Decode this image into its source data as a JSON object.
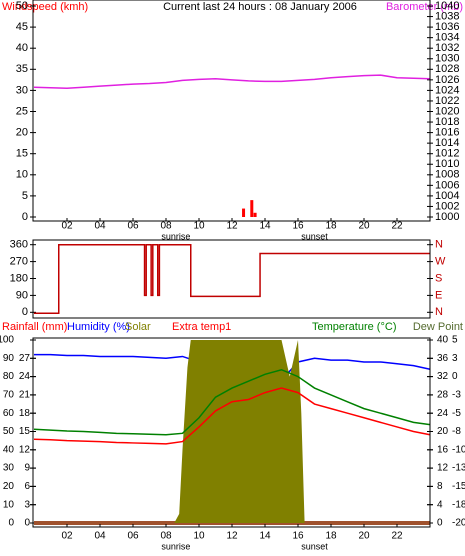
{
  "chart_data": [
    {
      "type": "bar-line",
      "title": "Current last 24 hours : 08 January 2006",
      "xlim": [
        0,
        24
      ],
      "xticks": [
        {
          "value": 2,
          "label": "02"
        },
        {
          "value": 4,
          "label": "04"
        },
        {
          "value": 6,
          "label": "06"
        },
        {
          "value": 8,
          "label": "08"
        },
        10,
        12,
        14,
        16,
        18,
        20,
        22
      ],
      "annotations": [
        {
          "text": "sunrise",
          "x": 8.6
        },
        {
          "text": "sunset",
          "x": 17
        }
      ],
      "ylim": [
        0,
        50
      ],
      "yticks": [
        0,
        5,
        10,
        15,
        20,
        25,
        30,
        35,
        40,
        45,
        50
      ],
      "y2lim": [
        1000,
        1040
      ],
      "y2ticks": [
        1000,
        1002,
        1004,
        1006,
        1008,
        1010,
        1012,
        1014,
        1016,
        1018,
        1020,
        1022,
        1024,
        1026,
        1028,
        1030,
        1032,
        1034,
        1036,
        1038,
        1040
      ],
      "series": [
        {
          "name": "Windspeed (kmh)",
          "color": "#ff0000",
          "kind": "bar",
          "x": [
            12.7,
            13.2,
            13.4
          ],
          "values": [
            2,
            4,
            1
          ]
        },
        {
          "name": "Barometer (mb)",
          "color": "#e020e0",
          "kind": "line",
          "axis": "y2",
          "x": [
            0,
            1,
            2,
            3,
            4,
            5,
            6,
            7,
            8,
            9,
            10,
            11,
            12,
            13,
            14,
            15,
            16,
            17,
            18,
            19,
            20,
            21,
            22,
            23,
            24
          ],
          "values": [
            1024.6,
            1024.5,
            1024.4,
            1024.6,
            1024.8,
            1025.0,
            1025.2,
            1025.3,
            1025.5,
            1025.9,
            1026.1,
            1026.2,
            1026.0,
            1025.8,
            1025.7,
            1025.7,
            1025.9,
            1026.1,
            1026.4,
            1026.6,
            1026.8,
            1026.9,
            1026.4,
            1026.3,
            1026.2
          ]
        }
      ]
    },
    {
      "type": "line",
      "xlim": [
        0,
        24
      ],
      "ylim": [
        -25,
        385
      ],
      "yticks": [
        0,
        90,
        180,
        270,
        360
      ],
      "y2lim": [
        -25,
        385
      ],
      "y2ticks": [
        {
          "value": 0,
          "label": "N"
        },
        {
          "value": 90,
          "label": "E"
        },
        {
          "value": 180,
          "label": "S"
        },
        {
          "value": 270,
          "label": "W"
        },
        {
          "value": 360,
          "label": "N"
        }
      ],
      "annotations": [
        {
          "text": "sunrise",
          "x": 8.6
        },
        {
          "text": "sunset",
          "x": 17
        }
      ],
      "series": [
        {
          "name": "Wind direction",
          "color": "#c00000",
          "kind": "line",
          "x": [
            0,
            1.5,
            1.5,
            6.7,
            6.7,
            6.8,
            6.8,
            7.1,
            7.1,
            7.2,
            7.2,
            7.5,
            7.5,
            7.6,
            7.6,
            9.5,
            9.5,
            13.7,
            13.7,
            24
          ],
          "values": [
            -5,
            -5,
            360,
            360,
            90,
            90,
            360,
            360,
            90,
            90,
            360,
            360,
            90,
            90,
            360,
            360,
            85,
            85,
            313,
            313
          ]
        }
      ]
    },
    {
      "type": "line",
      "xlim": [
        0,
        24
      ],
      "xticks": [
        {
          "value": 2,
          "label": "02"
        },
        {
          "value": 4,
          "label": "04"
        },
        {
          "value": 6,
          "label": "06"
        },
        {
          "value": 8,
          "label": "08"
        },
        10,
        12,
        14,
        16,
        18,
        20,
        22
      ],
      "annotations": [
        {
          "text": "sunrise",
          "x": 8.6
        },
        {
          "text": "sunset",
          "x": 17
        }
      ],
      "ylim": [
        0,
        100
      ],
      "yticks": [
        0,
        10,
        20,
        30,
        40,
        50,
        60,
        70,
        80,
        90,
        100
      ],
      "yblim": [
        0,
        30
      ],
      "ybticks": [
        0,
        3,
        6,
        9,
        12,
        15,
        18,
        21,
        24,
        27
      ],
      "y2lim": [
        0,
        40
      ],
      "y2ticks": [
        0,
        4,
        8,
        12,
        16,
        20,
        24,
        28,
        32,
        36,
        40
      ],
      "y3_label": "Dew Point",
      "y3lim": [
        -20,
        5
      ],
      "y3ticks": [
        -20,
        {
          "value": -17.5,
          "label": "-18"
        },
        -15,
        {
          "value": -12.5,
          "label": "-13"
        },
        -10,
        {
          "value": -7.5,
          "label": "-8"
        },
        -5,
        {
          "value": -2.5,
          "label": "-3"
        },
        0,
        {
          "value": 2.5,
          "label": "3"
        },
        5
      ],
      "series": [
        {
          "name": "Rainfall (mm)",
          "color": "#a0522d",
          "kind": "line",
          "x": [
            0,
            24
          ],
          "values": [
            0,
            0
          ]
        },
        {
          "name": "Humidity (%)",
          "color": "#0000ff",
          "kind": "line",
          "x": [
            0,
            1,
            2,
            3,
            4,
            5,
            6,
            7,
            8,
            9,
            10,
            11,
            12,
            13,
            14,
            15,
            16,
            17,
            18,
            19,
            20,
            21,
            22,
            23,
            24
          ],
          "values": [
            92,
            92,
            91.5,
            91.5,
            91,
            91,
            91,
            90.5,
            90,
            91,
            88,
            86,
            83,
            78,
            76,
            78,
            88,
            90,
            89,
            89,
            88,
            88,
            87,
            86,
            84
          ]
        },
        {
          "name": "Solar",
          "color": "#808000",
          "kind": "area",
          "x": [
            0,
            8.5,
            8.8,
            9.0,
            9.3,
            9.5,
            10,
            11,
            12,
            13,
            14,
            15,
            15.5,
            16,
            16.2,
            16.4,
            24
          ],
          "values": [
            0,
            0,
            5,
            40,
            85,
            100,
            100,
            100,
            100,
            100,
            100,
            100,
            80,
            100,
            60,
            0,
            0
          ]
        },
        {
          "name": "Extra temp1",
          "color": "#ff0000",
          "kind": "line",
          "axis": "y2",
          "x": [
            0,
            1,
            2,
            3,
            4,
            5,
            6,
            7,
            8,
            9,
            10,
            11,
            12,
            13,
            14,
            15,
            16,
            17,
            18,
            19,
            20,
            21,
            22,
            23,
            24
          ],
          "values": [
            18.3,
            18.2,
            18,
            17.9,
            17.8,
            17.6,
            17.5,
            17.4,
            17.3,
            17.8,
            21,
            24.5,
            26.5,
            27,
            28.5,
            29.5,
            28.5,
            26,
            25,
            24,
            23,
            22,
            21,
            20,
            19.3
          ]
        },
        {
          "name": "Temperature (°C)",
          "color": "#008000",
          "kind": "line",
          "axis": "y2",
          "x": [
            0,
            1,
            2,
            3,
            4,
            5,
            6,
            7,
            8,
            9,
            10,
            11,
            12,
            13,
            14,
            15,
            16,
            17,
            18,
            19,
            20,
            21,
            22,
            23,
            24
          ],
          "values": [
            20.5,
            20.3,
            20.1,
            20,
            19.8,
            19.6,
            19.5,
            19.4,
            19.3,
            19.6,
            23,
            27.5,
            29.5,
            31,
            32.5,
            33.5,
            32,
            29.5,
            28,
            26.5,
            25,
            24,
            23,
            22,
            21.5
          ]
        }
      ]
    }
  ]
}
